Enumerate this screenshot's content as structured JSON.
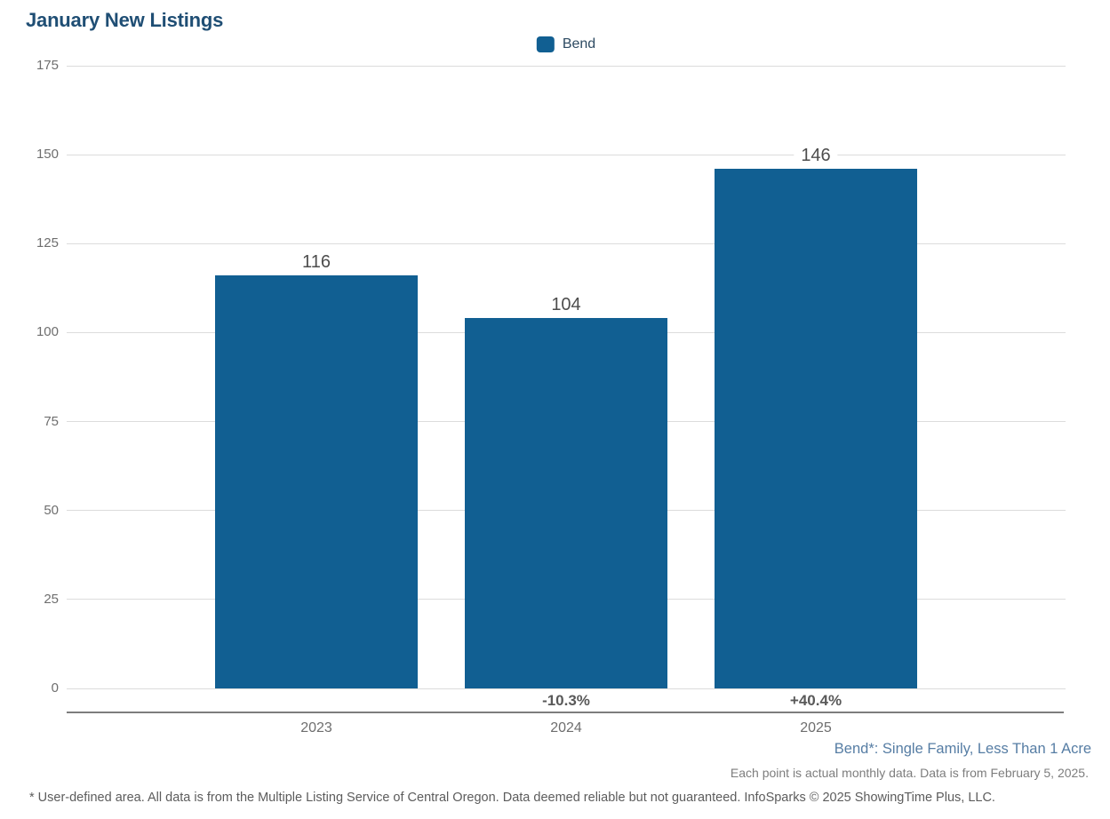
{
  "chart_data": {
    "type": "bar",
    "title": "January New Listings",
    "legend": [
      "Bend"
    ],
    "legend_position": "top-center",
    "categories": [
      "2023",
      "2024",
      "2025"
    ],
    "values": [
      116,
      104,
      146
    ],
    "value_labels": [
      "116",
      "104",
      "146"
    ],
    "pct_change_labels": [
      "",
      "-10.3%",
      "+40.4%"
    ],
    "ylim": [
      0,
      175
    ],
    "yticks": [
      0,
      25,
      50,
      75,
      100,
      125,
      150,
      175
    ],
    "grid": true,
    "xlabel": "",
    "ylabel": "",
    "bar_color": "#115f92"
  },
  "colors": {
    "bar": "#115f92",
    "title": "#1f4e74",
    "gridline": "#dcdcdc",
    "axis_line": "#7d7d7d",
    "series_note": "#567da4"
  },
  "footnotes": {
    "series_note": "Bend*: Single Family, Less Than 1 Acre",
    "data_note": "Each point is actual monthly data. Data is from February 5, 2025.",
    "disclaimer": "* User-defined area. All data is from the Multiple Listing Service of Central Oregon. Data deemed reliable but not guaranteed. InfoSparks © 2025 ShowingTime Plus, LLC."
  }
}
